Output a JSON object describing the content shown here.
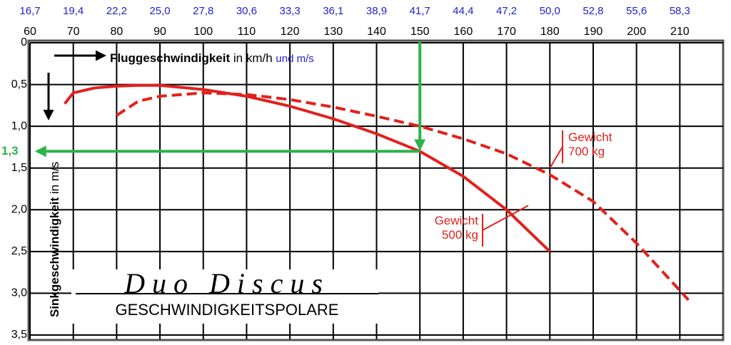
{
  "chart_data": {
    "type": "line",
    "x_label": {
      "bold": "Fluggeschwindigkeit",
      "rest": "in km/h",
      "x2": "und m/s"
    },
    "y_label": {
      "bold": "Sinkgeschwindigkeit",
      "rest": "in m/s"
    },
    "logo": {
      "name": "Duo Discus",
      "subtitle": "GESCHWINDIGKEITSPOLARE"
    },
    "xlim": [
      60,
      220
    ],
    "xticks": [
      60,
      70,
      80,
      90,
      100,
      110,
      120,
      130,
      140,
      150,
      160,
      170,
      180,
      190,
      200,
      210
    ],
    "x2ticks": [
      {
        "value": 60,
        "label": "16,7"
      },
      {
        "value": 70,
        "label": "19,4"
      },
      {
        "value": 80,
        "label": "22,2"
      },
      {
        "value": 90,
        "label": "25,0"
      },
      {
        "value": 100,
        "label": "27,8"
      },
      {
        "value": 110,
        "label": "30,6"
      },
      {
        "value": 120,
        "label": "33,3"
      },
      {
        "value": 130,
        "label": "36,1"
      },
      {
        "value": 140,
        "label": "38,9"
      },
      {
        "value": 150,
        "label": "41,7"
      },
      {
        "value": 160,
        "label": "44,4"
      },
      {
        "value": 170,
        "label": "47,2"
      },
      {
        "value": 180,
        "label": "50,0"
      },
      {
        "value": 190,
        "label": "52,8"
      },
      {
        "value": 200,
        "label": "55,6"
      },
      {
        "value": 210,
        "label": "58,3"
      }
    ],
    "ylim": [
      0,
      3.5
    ],
    "y_inverted": true,
    "yticks": [
      0,
      {
        "value": 0.5,
        "label": "0,5"
      },
      {
        "value": 1.0,
        "label": "1,0"
      },
      {
        "value": 1.5,
        "label": "1,5"
      },
      {
        "value": 2.0,
        "label": "2,0"
      },
      {
        "value": 2.5,
        "label": "2,5"
      },
      {
        "value": 3.0,
        "label": "3,0"
      },
      {
        "value": 3.5,
        "label": "3,5"
      }
    ],
    "grid": true,
    "series": [
      {
        "name": "Gewicht 500 kg",
        "color": "#e3211c",
        "dash": false,
        "x": [
          68,
          70,
          75,
          80,
          85,
          90,
          100,
          110,
          120,
          130,
          140,
          150,
          160,
          170,
          180
        ],
        "values": [
          0.73,
          0.6,
          0.54,
          0.52,
          0.51,
          0.51,
          0.56,
          0.64,
          0.76,
          0.91,
          1.09,
          1.3,
          1.6,
          2.0,
          2.5
        ]
      },
      {
        "name": "Gewicht 700 kg",
        "color": "#e3211c",
        "dash": true,
        "x": [
          80,
          85,
          90,
          100,
          110,
          120,
          130,
          140,
          150,
          160,
          170,
          180,
          190,
          200,
          212
        ],
        "values": [
          0.87,
          0.7,
          0.64,
          0.6,
          0.62,
          0.68,
          0.77,
          0.88,
          1.0,
          1.15,
          1.33,
          1.58,
          1.9,
          2.4,
          3.08
        ]
      }
    ],
    "reading": {
      "x": 150,
      "y": {
        "value": 1.3,
        "label": "1,3"
      },
      "color": "#2db34a"
    }
  }
}
